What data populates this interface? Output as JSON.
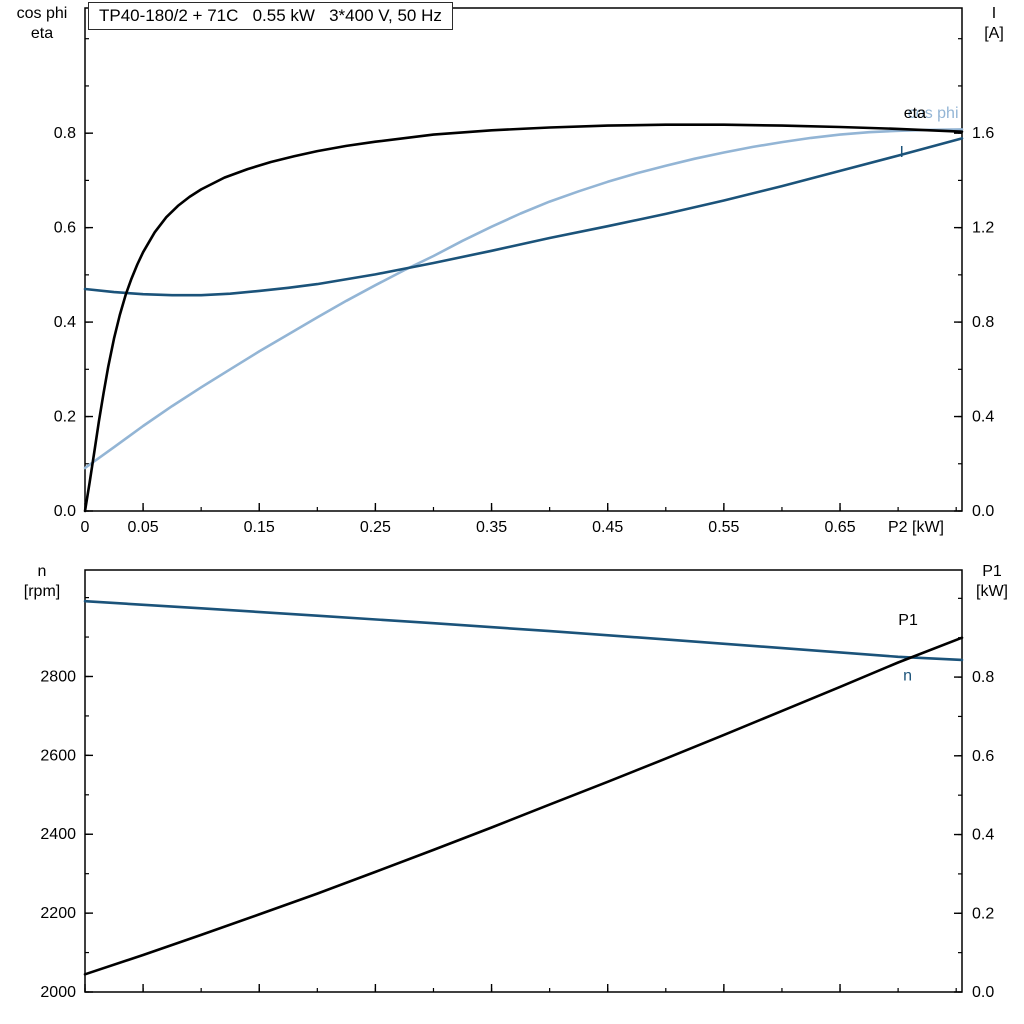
{
  "title": "TP40-180/2 + 71C   0.55 kW   3*400 V, 50 Hz",
  "colors": {
    "black": "#000000",
    "dark_blue": "#1b537a",
    "light_blue": "#93b5d5",
    "axis": "#000000",
    "background": "#ffffff"
  },
  "axis_corner_labels": {
    "top_left": [
      "cos phi",
      "eta"
    ],
    "top_right": [
      "I",
      "[A]"
    ],
    "bottom_left": [
      "n",
      "[rpm]"
    ],
    "bottom_right": [
      "P1",
      "[kW]"
    ]
  },
  "chart_data": [
    {
      "name": "electrical-curves",
      "type": "line",
      "title": "TP40-180/2 + 71C   0.55 kW   3*400 V, 50 Hz",
      "x_axis": {
        "label": "P2 [kW]",
        "lim": [
          0,
          0.755
        ],
        "major_ticks": [
          0,
          0.05,
          0.15,
          0.25,
          0.35,
          0.45,
          0.55,
          0.65
        ],
        "tick_labels": [
          "0",
          "0.05",
          "0.15",
          "0.25",
          "0.35",
          "0.45",
          "0.55",
          "0.65"
        ],
        "minor_step": 0.05,
        "show_tick_labels": true
      },
      "left_axis": {
        "label": "cos phi / eta",
        "lim": [
          0,
          1.065
        ],
        "major_ticks": [
          0,
          0.2,
          0.4,
          0.6,
          0.8
        ],
        "tick_labels": [
          "0.0",
          "0.2",
          "0.4",
          "0.6",
          "0.8"
        ],
        "minor_step": 0.1
      },
      "right_axis": {
        "label": "I [A]",
        "lim": [
          0,
          2.13
        ],
        "major_ticks": [
          0,
          0.4,
          0.8,
          1.2,
          1.6
        ],
        "tick_labels": [
          "0.0",
          "0.4",
          "0.8",
          "1.2",
          "1.6"
        ],
        "minor_step": 0.2
      },
      "series": [
        {
          "name": "cos phi",
          "axis": "left",
          "color": "light_blue",
          "label": {
            "text": "cos phi",
            "x": 0.752,
            "y": 0.832,
            "anchor": "end"
          },
          "points": [
            [
              0,
              0.091
            ],
            [
              0.025,
              0.135
            ],
            [
              0.05,
              0.18
            ],
            [
              0.075,
              0.222
            ],
            [
              0.1,
              0.262
            ],
            [
              0.125,
              0.3
            ],
            [
              0.15,
              0.338
            ],
            [
              0.175,
              0.374
            ],
            [
              0.2,
              0.41
            ],
            [
              0.225,
              0.445
            ],
            [
              0.25,
              0.478
            ],
            [
              0.275,
              0.51
            ],
            [
              0.3,
              0.54
            ],
            [
              0.325,
              0.572
            ],
            [
              0.35,
              0.602
            ],
            [
              0.375,
              0.63
            ],
            [
              0.4,
              0.655
            ],
            [
              0.425,
              0.677
            ],
            [
              0.45,
              0.697
            ],
            [
              0.475,
              0.715
            ],
            [
              0.5,
              0.731
            ],
            [
              0.525,
              0.746
            ],
            [
              0.55,
              0.759
            ],
            [
              0.575,
              0.771
            ],
            [
              0.6,
              0.781
            ],
            [
              0.625,
              0.79
            ],
            [
              0.65,
              0.797
            ],
            [
              0.675,
              0.802
            ],
            [
              0.7,
              0.805
            ],
            [
              0.725,
              0.807
            ],
            [
              0.755,
              0.808
            ]
          ]
        },
        {
          "name": "I",
          "axis": "right",
          "color": "dark_blue",
          "label": {
            "text": "I",
            "x": 0.705,
            "y": 1.5,
            "anchor": "end"
          },
          "points": [
            [
              0,
              0.94
            ],
            [
              0.025,
              0.927
            ],
            [
              0.05,
              0.918
            ],
            [
              0.075,
              0.914
            ],
            [
              0.1,
              0.914
            ],
            [
              0.125,
              0.92
            ],
            [
              0.15,
              0.932
            ],
            [
              0.175,
              0.945
            ],
            [
              0.2,
              0.961
            ],
            [
              0.25,
              1.002
            ],
            [
              0.3,
              1.05
            ],
            [
              0.35,
              1.102
            ],
            [
              0.4,
              1.156
            ],
            [
              0.45,
              1.206
            ],
            [
              0.5,
              1.258
            ],
            [
              0.55,
              1.315
            ],
            [
              0.6,
              1.376
            ],
            [
              0.65,
              1.44
            ],
            [
              0.7,
              1.505
            ],
            [
              0.755,
              1.578
            ]
          ]
        },
        {
          "name": "eta",
          "axis": "left",
          "color": "black",
          "label": {
            "text": "eta",
            "x": 0.724,
            "y": 0.832,
            "anchor": "end"
          },
          "points": [
            [
              0,
              0
            ],
            [
              0.004,
              0.06
            ],
            [
              0.008,
              0.125
            ],
            [
              0.012,
              0.19
            ],
            [
              0.016,
              0.25
            ],
            [
              0.02,
              0.305
            ],
            [
              0.025,
              0.365
            ],
            [
              0.03,
              0.415
            ],
            [
              0.035,
              0.458
            ],
            [
              0.04,
              0.492
            ],
            [
              0.045,
              0.522
            ],
            [
              0.05,
              0.548
            ],
            [
              0.06,
              0.59
            ],
            [
              0.07,
              0.622
            ],
            [
              0.08,
              0.646
            ],
            [
              0.09,
              0.665
            ],
            [
              0.1,
              0.681
            ],
            [
              0.12,
              0.706
            ],
            [
              0.14,
              0.724
            ],
            [
              0.16,
              0.739
            ],
            [
              0.18,
              0.751
            ],
            [
              0.2,
              0.762
            ],
            [
              0.225,
              0.773
            ],
            [
              0.25,
              0.782
            ],
            [
              0.3,
              0.797
            ],
            [
              0.35,
              0.806
            ],
            [
              0.4,
              0.812
            ],
            [
              0.45,
              0.816
            ],
            [
              0.5,
              0.818
            ],
            [
              0.55,
              0.818
            ],
            [
              0.6,
              0.816
            ],
            [
              0.65,
              0.813
            ],
            [
              0.7,
              0.809
            ],
            [
              0.755,
              0.803
            ]
          ]
        }
      ]
    },
    {
      "name": "speed-power-curves",
      "type": "line",
      "x_axis": {
        "label": "",
        "lim": [
          0,
          0.755
        ],
        "major_ticks": [
          0,
          0.05,
          0.15,
          0.25,
          0.35,
          0.45,
          0.55,
          0.65
        ],
        "tick_labels": [],
        "minor_step": 0.05,
        "show_tick_labels": false
      },
      "left_axis": {
        "label": "n [rpm]",
        "lim": [
          2000,
          3070
        ],
        "major_ticks": [
          2000,
          2200,
          2400,
          2600,
          2800
        ],
        "tick_labels": [
          "2000",
          "2200",
          "2400",
          "2600",
          "2800"
        ],
        "minor_step": 100
      },
      "right_axis": {
        "label": "P1 [kW]",
        "lim": [
          0,
          1.072
        ],
        "major_ticks": [
          0,
          0.2,
          0.4,
          0.6,
          0.8
        ],
        "tick_labels": [
          "0.0",
          "0.2",
          "0.4",
          "0.6",
          "0.8"
        ],
        "minor_step": 0.1
      },
      "series": [
        {
          "name": "n",
          "axis": "left",
          "color": "dark_blue",
          "label": {
            "text": "n",
            "x": 0.712,
            "y": 2790,
            "anchor": "end"
          },
          "points": [
            [
              0,
              2991
            ],
            [
              0.1,
              2973
            ],
            [
              0.2,
              2954
            ],
            [
              0.3,
              2935
            ],
            [
              0.4,
              2915
            ],
            [
              0.5,
              2894
            ],
            [
              0.6,
              2872
            ],
            [
              0.7,
              2850
            ],
            [
              0.755,
              2842
            ]
          ]
        },
        {
          "name": "P1",
          "axis": "right",
          "color": "black",
          "label": {
            "text": "P1",
            "x": 0.717,
            "y": 0.932,
            "anchor": "end"
          },
          "points": [
            [
              0,
              0.045
            ],
            [
              0.05,
              0.094
            ],
            [
              0.1,
              0.145
            ],
            [
              0.15,
              0.197
            ],
            [
              0.2,
              0.25
            ],
            [
              0.25,
              0.305
            ],
            [
              0.3,
              0.361
            ],
            [
              0.35,
              0.418
            ],
            [
              0.4,
              0.476
            ],
            [
              0.45,
              0.534
            ],
            [
              0.5,
              0.593
            ],
            [
              0.55,
              0.653
            ],
            [
              0.6,
              0.714
            ],
            [
              0.65,
              0.775
            ],
            [
              0.7,
              0.837
            ],
            [
              0.755,
              0.9
            ]
          ]
        }
      ]
    }
  ]
}
